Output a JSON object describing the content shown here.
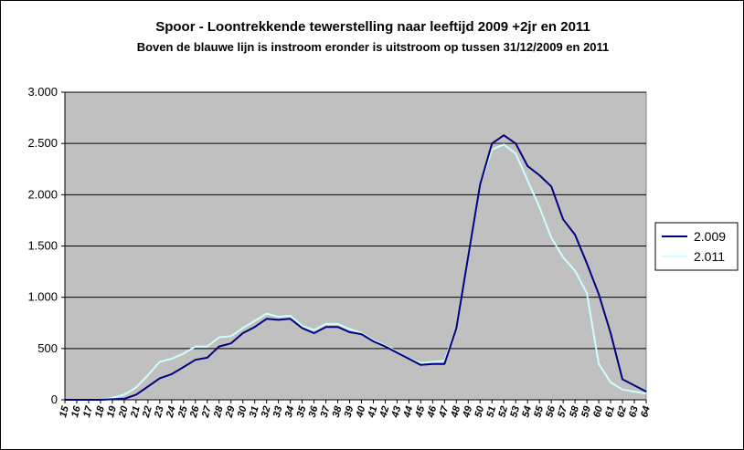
{
  "chart_data": {
    "type": "line",
    "title": "Spoor - Loontrekkende tewerstelling naar leeftijd 2009 +2jr en 2011",
    "subtitle": "Boven de blauwe lijn is instroom eronder is uitstroom op tussen 31/12/2009 en 2011",
    "xlabel": "",
    "ylabel": "",
    "ylim": [
      0,
      3000
    ],
    "yticks": [
      0,
      500,
      1000,
      1500,
      2000,
      2500,
      3000
    ],
    "ytick_labels": [
      "0",
      "500",
      "1.000",
      "1.500",
      "2.000",
      "2.500",
      "3.000"
    ],
    "grid": true,
    "legend_position": "right",
    "plot_background": "#c0c0c0",
    "categories": [
      "15",
      "16",
      "17",
      "18",
      "19",
      "20",
      "21",
      "22",
      "23",
      "24",
      "25",
      "26",
      "27",
      "28",
      "29",
      "30",
      "31",
      "32",
      "33",
      "34",
      "35",
      "36",
      "37",
      "38",
      "39",
      "40",
      "41",
      "42",
      "43",
      "44",
      "45",
      "46",
      "47",
      "48",
      "49",
      "50",
      "51",
      "52",
      "53",
      "54",
      "55",
      "56",
      "57",
      "58",
      "59",
      "60",
      "61",
      "62",
      "63",
      "64"
    ],
    "series": [
      {
        "name": "2.009",
        "color": "#000080",
        "values": [
          0,
          0,
          0,
          0,
          5,
          10,
          50,
          130,
          210,
          250,
          320,
          390,
          410,
          520,
          550,
          650,
          710,
          790,
          780,
          790,
          700,
          650,
          710,
          710,
          660,
          640,
          570,
          520,
          460,
          400,
          340,
          350,
          350,
          700,
          1400,
          2100,
          2500,
          2580,
          2500,
          2280,
          2190,
          2080,
          1760,
          1610,
          1330,
          1030,
          650,
          200,
          140,
          80
        ]
      },
      {
        "name": "2.011",
        "color": "#ccffff",
        "values": [
          0,
          0,
          0,
          0,
          20,
          50,
          120,
          240,
          370,
          400,
          450,
          520,
          520,
          610,
          620,
          700,
          770,
          840,
          810,
          820,
          720,
          680,
          740,
          740,
          690,
          650,
          580,
          530,
          470,
          400,
          360,
          370,
          380,
          710,
          1400,
          2100,
          2440,
          2490,
          2400,
          2140,
          1880,
          1580,
          1390,
          1260,
          1040,
          350,
          170,
          100,
          80,
          60
        ]
      }
    ]
  }
}
